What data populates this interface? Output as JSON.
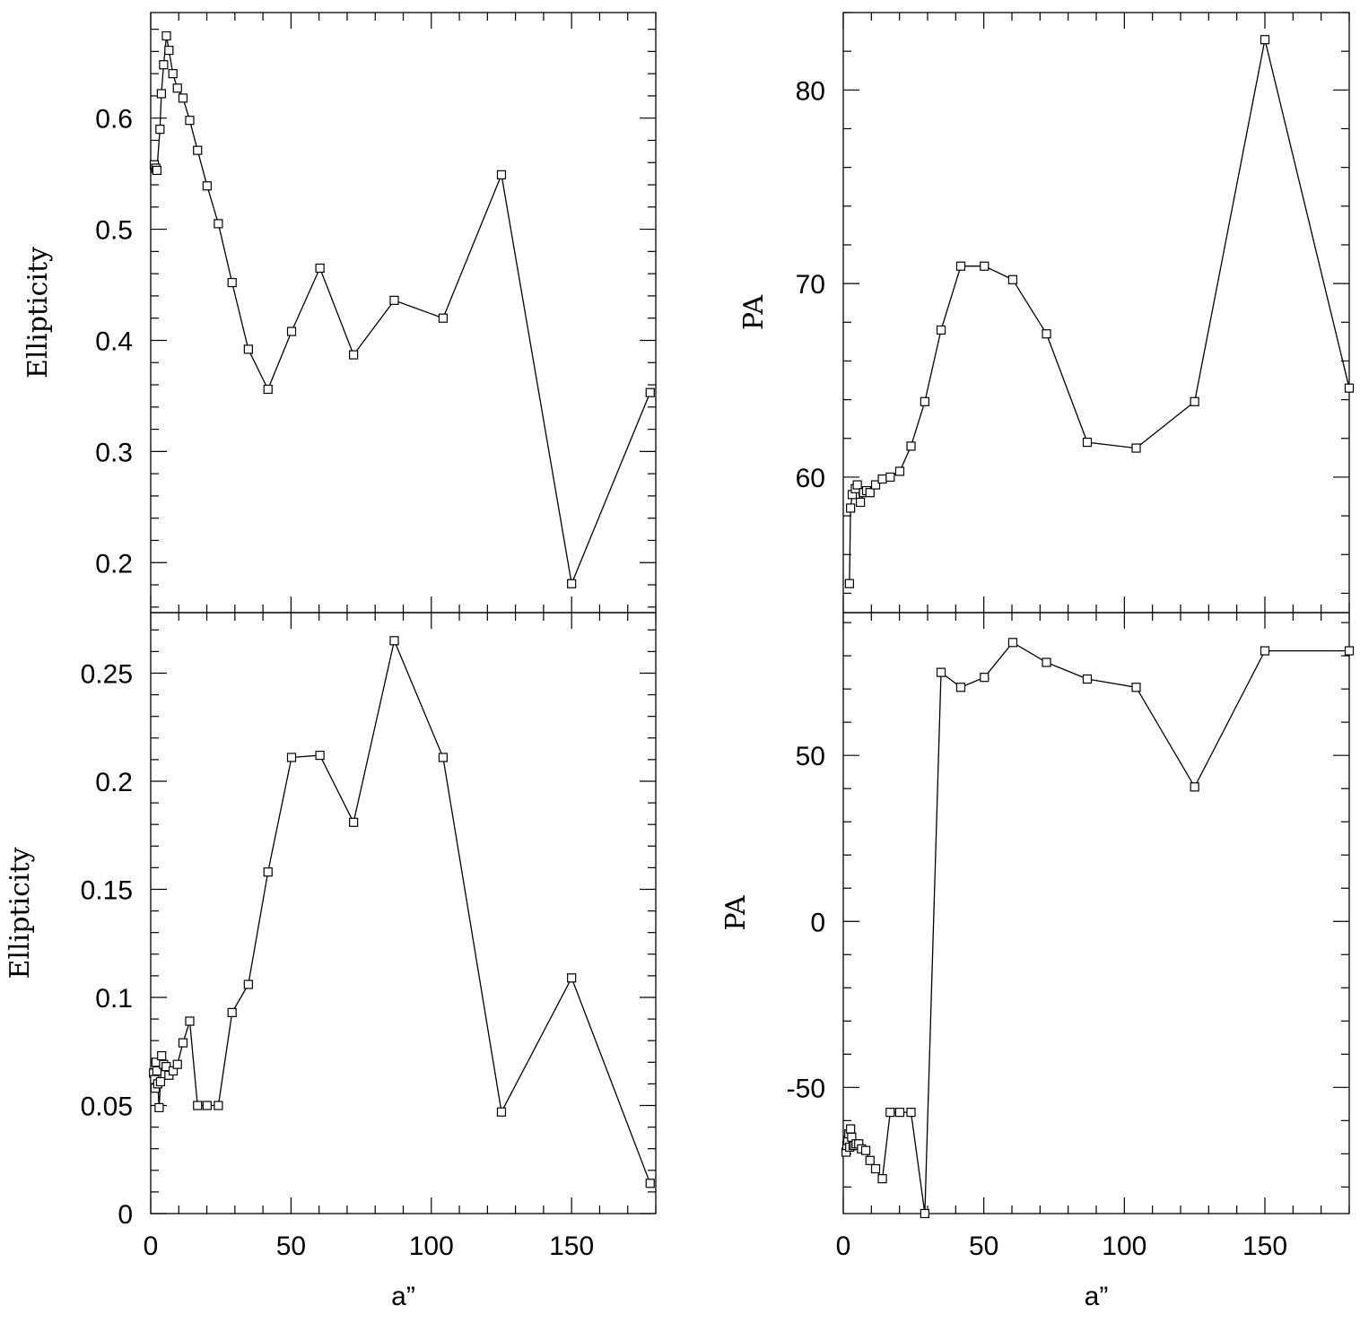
{
  "chart_data": [
    {
      "type": "line",
      "panel": "top-left",
      "xlabel": "",
      "ylabel": "Ellipticity",
      "xlim": [
        0,
        180
      ],
      "ylim": [
        0.155,
        0.695
      ],
      "xticks": [
        0,
        50,
        100,
        150
      ],
      "yticks": [
        0.2,
        0.3,
        0.4,
        0.5,
        0.6
      ],
      "ytick_labels": [
        "0.2",
        "0.3",
        "0.4",
        "0.5",
        "0.6"
      ],
      "x_minor_step": 10,
      "y_minor_step": 0.02,
      "marker": "open-square",
      "x": [
        1.3,
        1.8,
        2.2,
        3.3,
        3.8,
        4.6,
        5.6,
        6.5,
        7.9,
        9.5,
        11.5,
        13.9,
        16.7,
        20.1,
        24.1,
        29.0,
        34.8,
        41.8,
        50.2,
        60.3,
        72.3,
        86.8,
        104.2,
        125.0,
        150.0,
        178.0
      ],
      "y": [
        0.558,
        0.555,
        0.553,
        0.59,
        0.622,
        0.648,
        0.674,
        0.661,
        0.64,
        0.627,
        0.618,
        0.598,
        0.571,
        0.539,
        0.505,
        0.452,
        0.392,
        0.356,
        0.408,
        0.465,
        0.387,
        0.436,
        0.42,
        0.549,
        0.181,
        0.353
      ]
    },
    {
      "type": "line",
      "panel": "top-right",
      "xlabel": "",
      "ylabel": "PA",
      "xlim": [
        0,
        180
      ],
      "ylim": [
        53.0,
        84.0
      ],
      "xticks": [
        0,
        50,
        100,
        150
      ],
      "yticks": [
        60,
        70,
        80
      ],
      "ytick_labels": [
        "60",
        "70",
        "80"
      ],
      "x_minor_step": 10,
      "y_minor_step": 2,
      "marker": "open-square",
      "x": [
        2.2,
        2.6,
        3.2,
        4.3,
        5.0,
        6.1,
        7.2,
        8.3,
        9.5,
        11.5,
        13.9,
        16.7,
        20.1,
        24.1,
        29.0,
        34.8,
        41.8,
        50.2,
        60.3,
        72.3,
        86.8,
        104.2,
        125.0,
        150.0,
        180.0
      ],
      "y": [
        54.5,
        58.4,
        59.1,
        59.4,
        59.6,
        58.7,
        59.2,
        59.3,
        59.2,
        59.6,
        59.9,
        60.0,
        60.3,
        61.6,
        63.9,
        67.6,
        70.9,
        70.9,
        70.2,
        67.4,
        61.8,
        61.5,
        63.9,
        82.6,
        64.6
      ]
    },
    {
      "type": "line",
      "panel": "bottom-left",
      "xlabel": "a”",
      "ylabel": "Ellipticity",
      "xlim": [
        0,
        180
      ],
      "ylim": [
        0,
        0.278
      ],
      "xticks": [
        0,
        50,
        100,
        150
      ],
      "yticks": [
        0,
        0.05,
        0.1,
        0.15,
        0.2,
        0.25
      ],
      "ytick_labels": [
        "0",
        "0.05",
        "0.1",
        "0.15",
        "0.2",
        "0.25"
      ],
      "x_minor_step": 10,
      "y_minor_step": 0.01,
      "marker": "open-square",
      "x": [
        1.0,
        1.4,
        1.6,
        1.9,
        2.2,
        2.5,
        3.0,
        3.5,
        3.9,
        4.6,
        5.5,
        6.5,
        8.0,
        9.5,
        11.5,
        13.9,
        16.7,
        20.1,
        24.1,
        29.0,
        34.8,
        41.8,
        50.2,
        60.3,
        72.3,
        86.8,
        104.2,
        125.0,
        150.0,
        178.0
      ],
      "y": [
        0.065,
        0.062,
        0.058,
        0.07,
        0.066,
        0.06,
        0.049,
        0.061,
        0.073,
        0.069,
        0.068,
        0.064,
        0.066,
        0.069,
        0.079,
        0.089,
        0.05,
        0.05,
        0.05,
        0.093,
        0.106,
        0.158,
        0.211,
        0.212,
        0.181,
        0.265,
        0.211,
        0.047,
        0.109,
        0.014
      ]
    },
    {
      "type": "line",
      "panel": "bottom-right",
      "xlabel": "a”",
      "ylabel": "PA",
      "xlim": [
        0,
        180
      ],
      "ylim": [
        -88,
        93
      ],
      "xticks": [
        0,
        50,
        100,
        150
      ],
      "yticks": [
        -50,
        0,
        50
      ],
      "ytick_labels": [
        "-50",
        "0",
        "50"
      ],
      "x_minor_step": 10,
      "y_minor_step": 10,
      "marker": "open-square",
      "x": [
        1.0,
        1.3,
        1.6,
        2.0,
        2.3,
        2.6,
        3.0,
        3.5,
        4.0,
        4.6,
        5.5,
        6.5,
        8.0,
        9.5,
        11.5,
        13.9,
        16.7,
        20.1,
        24.1,
        29.0,
        34.8,
        41.8,
        50.2,
        60.3,
        72.3,
        86.8,
        104.2,
        125.0,
        150.0,
        180.0
      ],
      "y": [
        -69.5,
        -67.5,
        -66.0,
        -64.0,
        -68.0,
        -62.5,
        -65.0,
        -67.5,
        -67.5,
        -67.0,
        -67.0,
        -68.5,
        -69.0,
        -72.0,
        -74.5,
        -77.5,
        -57.5,
        -57.5,
        -57.5,
        -88.0,
        75.0,
        70.5,
        73.5,
        84.0,
        78.0,
        73.0,
        70.5,
        40.5,
        81.5,
        81.5
      ]
    }
  ]
}
